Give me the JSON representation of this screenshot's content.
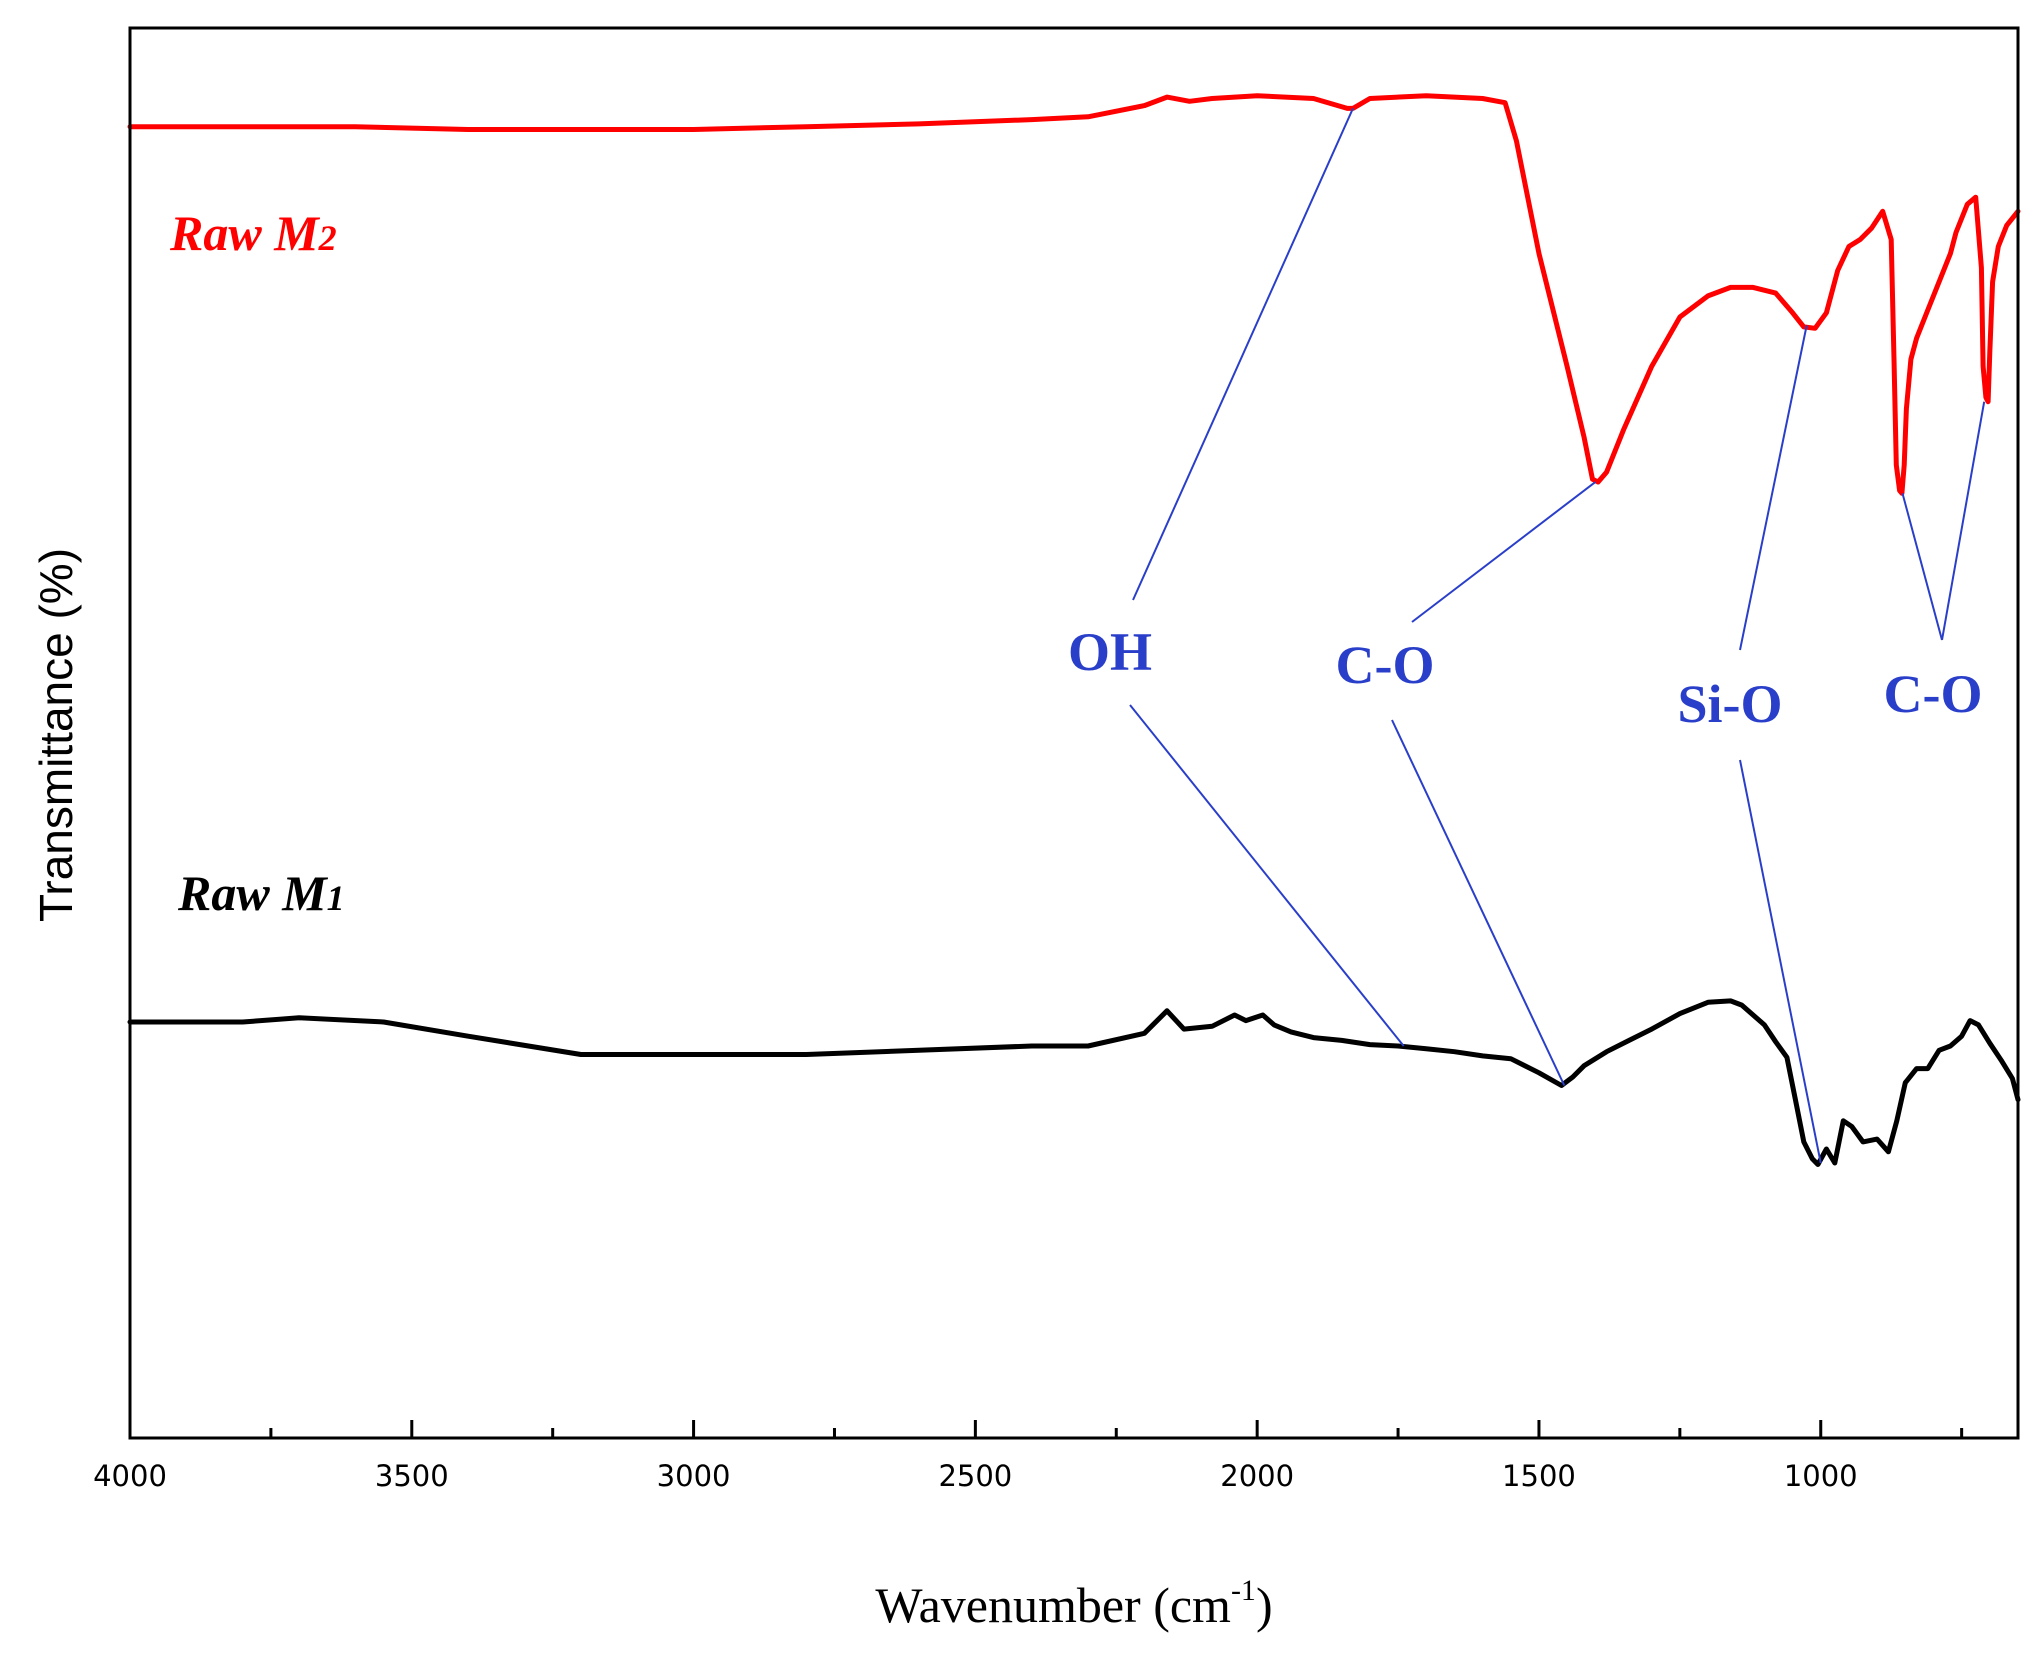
{
  "chart_data": {
    "type": "line",
    "title": "",
    "xlabel": "Wavenumber (cm",
    "xlabel_sup": "-1",
    "xlabel_close": ")",
    "ylabel": "Transmittance (%)",
    "xlim": [
      4000,
      650
    ],
    "ylim": [
      0,
      100
    ],
    "reversed_x": true,
    "y_ticks_shown": false,
    "x_ticks": [
      4000,
      3500,
      3000,
      2500,
      2000,
      1500,
      1000
    ],
    "x_tick_labels": [
      "4000",
      "3500",
      "3000",
      "2500",
      "2000",
      "1500",
      "1000"
    ],
    "annotation_color": "#2a3fc9",
    "series": [
      {
        "name": "Raw M1",
        "label_main": "Raw M",
        "label_sub": "1",
        "color": "#000000",
        "x": [
          4000,
          3800,
          3700,
          3550,
          3400,
          3200,
          3000,
          2800,
          2600,
          2400,
          2300,
          2200,
          2160,
          2130,
          2080,
          2040,
          2020,
          1990,
          1970,
          1940,
          1900,
          1850,
          1800,
          1750,
          1700,
          1650,
          1600,
          1550,
          1500,
          1460,
          1440,
          1420,
          1380,
          1340,
          1300,
          1250,
          1200,
          1160,
          1140,
          1100,
          1080,
          1060,
          1045,
          1030,
          1015,
          1005,
          990,
          975,
          960,
          945,
          925,
          900,
          880,
          865,
          850,
          830,
          810,
          790,
          770,
          750,
          735,
          720,
          700,
          680,
          660,
          650
        ],
        "y": [
          29.5,
          29.5,
          29.8,
          29.5,
          28.5,
          27.2,
          27.2,
          27.2,
          27.5,
          27.8,
          27.8,
          28.7,
          30.3,
          29.0,
          29.2,
          30.0,
          29.6,
          30.0,
          29.3,
          28.8,
          28.4,
          28.2,
          27.9,
          27.8,
          27.6,
          27.4,
          27.1,
          26.9,
          25.9,
          25.0,
          25.6,
          26.4,
          27.4,
          28.2,
          29.0,
          30.1,
          30.9,
          31.0,
          30.7,
          29.3,
          28.1,
          27.0,
          24.0,
          21.0,
          19.8,
          19.4,
          20.5,
          19.5,
          22.5,
          22.1,
          21.0,
          21.2,
          20.3,
          22.5,
          25.2,
          26.2,
          26.2,
          27.5,
          27.8,
          28.5,
          29.6,
          29.3,
          28.0,
          26.8,
          25.5,
          24.0
        ]
      },
      {
        "name": "Raw M2",
        "label_main": "Raw M",
        "label_sub": "2",
        "color": "#ff0000",
        "x": [
          4000,
          3800,
          3600,
          3400,
          3200,
          3000,
          2800,
          2600,
          2400,
          2300,
          2200,
          2160,
          2120,
          2080,
          2000,
          1900,
          1840,
          1830,
          1800,
          1700,
          1600,
          1560,
          1540,
          1500,
          1450,
          1420,
          1405,
          1395,
          1380,
          1350,
          1300,
          1250,
          1200,
          1160,
          1120,
          1080,
          1050,
          1030,
          1010,
          990,
          970,
          950,
          930,
          910,
          890,
          875,
          870,
          866,
          860,
          856,
          852,
          848,
          840,
          830,
          810,
          790,
          770,
          760,
          740,
          725,
          715,
          712,
          707,
          703,
          700,
          695,
          685,
          670,
          650
        ],
        "y": [
          93.0,
          93.0,
          93.0,
          92.8,
          92.8,
          92.8,
          93.0,
          93.2,
          93.5,
          93.7,
          94.5,
          95.1,
          94.8,
          95.0,
          95.2,
          95.0,
          94.3,
          94.3,
          95.0,
          95.2,
          95.0,
          94.7,
          92.0,
          84.0,
          76.0,
          71.0,
          68.0,
          67.8,
          68.5,
          71.5,
          76.0,
          79.5,
          81.0,
          81.6,
          81.6,
          81.2,
          79.8,
          78.8,
          78.7,
          79.8,
          82.8,
          84.5,
          85.0,
          85.8,
          87.0,
          85.0,
          76.5,
          69.0,
          67.2,
          67.0,
          69.0,
          73.0,
          76.5,
          78.0,
          80.0,
          82.0,
          84.0,
          85.5,
          87.5,
          88.0,
          83.0,
          76.0,
          73.8,
          73.5,
          77.0,
          82.0,
          84.5,
          86.0,
          87.0
        ]
      }
    ],
    "annotations": [
      {
        "label": "OH",
        "targets": [
          {
            "x": 1830,
            "y": 94.3
          },
          {
            "x": 1740,
            "y": 27.8
          }
        ]
      },
      {
        "label": "C-O",
        "targets": [
          {
            "x": 1400,
            "y": 67.8
          },
          {
            "x": 1455,
            "y": 25.0
          }
        ]
      },
      {
        "label": "Si-O",
        "targets": [
          {
            "x": 1025,
            "y": 78.9
          },
          {
            "x": 1000,
            "y": 19.5
          }
        ]
      },
      {
        "label": "C-O",
        "targets": [
          {
            "x": 855,
            "y": 67.0
          },
          {
            "x": 710,
            "y": 73.5
          }
        ]
      }
    ]
  }
}
